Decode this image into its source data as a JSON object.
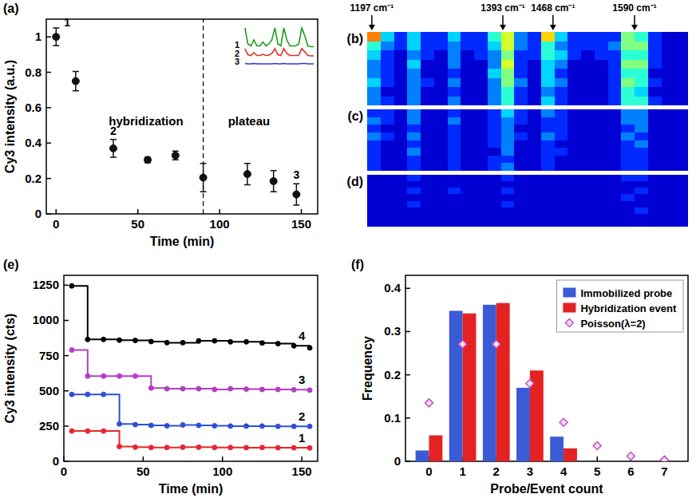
{
  "chart_data": [
    {
      "type": "scatter",
      "panel": "(a)",
      "xlabel": "Time (min)",
      "ylabel": "Cy3 intensity (a.u.)",
      "x": [
        0,
        12,
        35,
        56,
        73,
        90,
        117,
        133,
        147
      ],
      "values": [
        1.0,
        0.75,
        0.37,
        0.305,
        0.33,
        0.205,
        0.225,
        0.185,
        0.11
      ],
      "errors": [
        0.05,
        0.055,
        0.05,
        0.015,
        0.025,
        0.08,
        0.06,
        0.06,
        0.06
      ],
      "point_labels": [
        "1",
        null,
        "2",
        null,
        null,
        null,
        null,
        null,
        "3"
      ],
      "color": "#111111",
      "marker": "circle",
      "xlim": [
        -6,
        160
      ],
      "ylim": [
        0,
        1.1
      ],
      "xticks": [
        0,
        50,
        100,
        150
      ],
      "yticks": [
        0,
        0.2,
        0.4,
        0.6,
        0.8,
        1
      ],
      "annotations": [
        {
          "text": "hybridization",
          "x": 55,
          "y": 0.5
        },
        {
          "text": "plateau",
          "x": 118,
          "y": 0.5
        }
      ],
      "vlines": [
        {
          "x": 90,
          "line_style": "dashed"
        }
      ],
      "inset": {
        "type": "line",
        "x": [
          1200,
          1220,
          1240,
          1260,
          1280,
          1300,
          1320,
          1340,
          1360,
          1380,
          1400,
          1420,
          1440,
          1460,
          1480,
          1500,
          1520,
          1540,
          1560,
          1580,
          1600,
          1620,
          1640,
          1660
        ],
        "xlim": [
          1190,
          1670
        ],
        "ylim": [
          0,
          6
        ],
        "series": [
          {
            "name": "1",
            "color": "#1a9e1a",
            "values": [
              5,
              1,
              0.5,
              2,
              0.5,
              0.5,
              1.5,
              0.5,
              1,
              2,
              5,
              1,
              0.5,
              5,
              2,
              0.5,
              0.5,
              0.5,
              1,
              5,
              3,
              0.5,
              0.3,
              0.3
            ]
          },
          {
            "name": "2",
            "color": "#e0302a",
            "values": [
              2,
              0.5,
              0.3,
              1,
              0.3,
              0.3,
              0.6,
              0.3,
              0.4,
              0.8,
              2,
              0.5,
              0.3,
              2,
              0.8,
              0.3,
              0.3,
              0.3,
              0.4,
              2,
              1.2,
              0.3,
              0.2,
              0.2
            ]
          },
          {
            "name": "3",
            "color": "#2a3adb",
            "values": [
              0.3,
              0.2,
              0.2,
              0.3,
              0.2,
              0.2,
              0.2,
              0.2,
              0.2,
              0.2,
              0.3,
              0.2,
              0.2,
              0.3,
              0.2,
              0.2,
              0.2,
              0.2,
              0.2,
              0.3,
              0.3,
              0.2,
              0.2,
              0.2
            ]
          }
        ]
      }
    },
    {
      "type": "heatmap",
      "color": "jet",
      "x": [
        1200,
        1220,
        1240,
        1260,
        1280,
        1300,
        1320,
        1340,
        1360,
        1380,
        1400,
        1420,
        1440,
        1460,
        1480,
        1500,
        1520,
        1540,
        1560,
        1580,
        1600,
        1620,
        1640,
        1660
      ],
      "xlim": [
        1190,
        1670
      ],
      "zlim": [
        0,
        12
      ],
      "peaks": [
        {
          "value": 1197,
          "label": "1197 cm⁻¹"
        },
        {
          "value": 1393,
          "label": "1393 cm⁻¹"
        },
        {
          "value": 1468,
          "label": "1468 cm⁻¹"
        },
        {
          "value": 1590,
          "label": "1590 cm⁻¹"
        }
      ],
      "panels": [
        {
          "label": "(b)",
          "cells": [
            [
              9,
              4,
              2,
              4,
              2,
              2,
              4,
              2,
              2,
              5,
              7,
              3,
              2,
              8,
              4,
              2,
              2,
              2,
              2,
              6,
              5,
              2,
              1,
              1
            ],
            [
              5,
              3,
              2,
              4,
              2,
              2,
              3,
              2,
              2,
              4,
              7,
              3,
              2,
              5,
              3,
              2,
              2,
              2,
              3,
              6,
              6,
              2,
              1,
              1
            ],
            [
              4,
              2,
              1,
              3,
              2,
              1,
              3,
              1,
              2,
              3,
              6,
              2,
              2,
              5,
              4,
              2,
              1,
              2,
              2,
              5,
              5,
              2,
              1,
              1
            ],
            [
              3,
              2,
              1,
              4,
              1,
              1,
              3,
              1,
              1,
              3,
              7,
              2,
              1,
              4,
              3,
              1,
              1,
              1,
              2,
              6,
              6,
              2,
              1,
              1
            ],
            [
              3,
              2,
              1,
              3,
              1,
              1,
              2,
              1,
              1,
              4,
              6,
              2,
              1,
              4,
              2,
              1,
              1,
              1,
              2,
              5,
              5,
              1,
              1,
              1
            ],
            [
              4,
              2,
              1,
              3,
              2,
              1,
              3,
              1,
              1,
              3,
              6,
              3,
              1,
              4,
              3,
              1,
              1,
              1,
              2,
              6,
              5,
              2,
              1,
              1
            ],
            [
              3,
              1,
              1,
              3,
              1,
              1,
              2,
              1,
              1,
              3,
              5,
              2,
              1,
              3,
              2,
              1,
              1,
              1,
              2,
              5,
              4,
              1,
              1,
              1
            ],
            [
              3,
              2,
              1,
              3,
              1,
              1,
              3,
              1,
              1,
              3,
              5,
              2,
              1,
              4,
              2,
              1,
              1,
              1,
              2,
              5,
              5,
              2,
              1,
              1
            ]
          ]
        },
        {
          "label": "(c)",
          "cells": [
            [
              2,
              2,
              1,
              3,
              1,
              1,
              2,
              1,
              1,
              2,
              4,
              2,
              1,
              3,
              2,
              1,
              1,
              1,
              1,
              3,
              3,
              1,
              1,
              1
            ],
            [
              3,
              2,
              1,
              3,
              1,
              1,
              3,
              1,
              1,
              2,
              3,
              2,
              1,
              2,
              2,
              1,
              1,
              1,
              1,
              3,
              3,
              1,
              1,
              1
            ],
            [
              2,
              1,
              1,
              2,
              1,
              1,
              2,
              1,
              1,
              2,
              3,
              1,
              1,
              2,
              2,
              1,
              1,
              1,
              1,
              2,
              3,
              1,
              1,
              1
            ],
            [
              3,
              2,
              1,
              3,
              1,
              1,
              2,
              1,
              1,
              2,
              3,
              2,
              1,
              3,
              2,
              1,
              1,
              1,
              1,
              3,
              2,
              1,
              1,
              1
            ],
            [
              2,
              1,
              1,
              2,
              1,
              1,
              2,
              1,
              1,
              2,
              3,
              1,
              1,
              2,
              1,
              1,
              1,
              1,
              1,
              2,
              3,
              1,
              1,
              1
            ],
            [
              2,
              1,
              1,
              3,
              1,
              1,
              2,
              1,
              1,
              1,
              3,
              1,
              1,
              2,
              2,
              1,
              1,
              1,
              1,
              2,
              2,
              1,
              1,
              1
            ],
            [
              2,
              1,
              1,
              2,
              1,
              1,
              2,
              1,
              1,
              2,
              2,
              1,
              1,
              2,
              1,
              1,
              1,
              1,
              1,
              2,
              2,
              1,
              1,
              1
            ],
            [
              2,
              1,
              1,
              2,
              1,
              1,
              2,
              1,
              1,
              2,
              3,
              1,
              1,
              2,
              1,
              1,
              1,
              1,
              1,
              2,
              2,
              1,
              1,
              1
            ]
          ]
        },
        {
          "label": "(d)",
          "cells": [
            [
              1,
              1,
              1,
              2,
              1,
              1,
              1,
              1,
              1,
              1,
              2,
              1,
              1,
              1,
              1,
              1,
              1,
              1,
              1,
              2,
              2,
              1,
              1,
              1
            ],
            [
              1,
              1,
              1,
              1,
              1,
              1,
              1,
              1,
              1,
              1,
              1,
              1,
              1,
              1,
              1,
              1,
              1,
              1,
              1,
              1,
              1,
              1,
              1,
              1
            ],
            [
              1,
              1,
              1,
              2,
              1,
              1,
              2,
              1,
              1,
              1,
              2,
              1,
              1,
              1,
              1,
              1,
              1,
              1,
              1,
              1,
              2,
              1,
              1,
              1
            ],
            [
              1,
              1,
              1,
              1,
              1,
              1,
              1,
              1,
              1,
              1,
              1,
              1,
              1,
              1,
              1,
              1,
              1,
              1,
              1,
              2,
              1,
              1,
              1,
              1
            ],
            [
              1,
              1,
              1,
              2,
              1,
              1,
              1,
              1,
              1,
              1,
              2,
              1,
              1,
              1,
              1,
              1,
              1,
              1,
              1,
              1,
              1,
              1,
              1,
              1
            ],
            [
              1,
              1,
              1,
              1,
              1,
              1,
              1,
              1,
              1,
              1,
              1,
              1,
              1,
              1,
              1,
              1,
              1,
              1,
              1,
              1,
              2,
              1,
              1,
              1
            ],
            [
              1,
              1,
              1,
              1,
              1,
              1,
              1,
              1,
              1,
              1,
              1,
              1,
              1,
              1,
              1,
              1,
              1,
              1,
              1,
              1,
              1,
              1,
              1,
              1
            ],
            [
              1,
              1,
              1,
              1,
              1,
              1,
              1,
              1,
              1,
              1,
              1,
              1,
              1,
              1,
              1,
              1,
              1,
              1,
              1,
              1,
              1,
              1,
              1,
              1
            ]
          ]
        }
      ]
    },
    {
      "type": "line",
      "panel": "(e)",
      "xlabel": "Time (min)",
      "ylabel": "Cy3 intensity (cts)",
      "line_style": "step",
      "marker": "circle",
      "x": [
        5,
        15,
        25,
        35,
        45,
        55,
        65,
        75,
        85,
        95,
        105,
        115,
        125,
        135,
        145,
        155
      ],
      "xlim": [
        0,
        160
      ],
      "ylim": [
        0,
        1320
      ],
      "xticks": [
        0,
        50,
        100,
        150
      ],
      "yticks": [
        0,
        250,
        500,
        750,
        1000,
        1250
      ],
      "series": [
        {
          "name": "1",
          "color": "#e8262b",
          "values": [
            215,
            215,
            215,
            105,
            100,
            98,
            98,
            100,
            100,
            98,
            98,
            97,
            98,
            96,
            96,
            95
          ]
        },
        {
          "name": "2",
          "color": "#2f4fd8",
          "values": [
            475,
            475,
            475,
            265,
            260,
            255,
            252,
            258,
            255,
            252,
            250,
            250,
            250,
            248,
            248,
            248
          ]
        },
        {
          "name": "3",
          "color": "#b43cc6",
          "values": [
            790,
            605,
            605,
            605,
            605,
            520,
            515,
            515,
            515,
            510,
            515,
            512,
            510,
            510,
            508,
            505
          ]
        },
        {
          "name": "4",
          "color": "#000000",
          "values": [
            1245,
            865,
            865,
            860,
            858,
            850,
            842,
            842,
            855,
            855,
            848,
            848,
            840,
            835,
            820,
            805
          ]
        }
      ]
    },
    {
      "type": "bar",
      "panel": "(f)",
      "xlabel": "Probe/Event count",
      "ylabel": "Frequency",
      "categories": [
        "0",
        "1",
        "2",
        "3",
        "4",
        "5",
        "6",
        "7"
      ],
      "ylim": [
        0,
        0.43
      ],
      "yticks": [
        0,
        0.1,
        0.2,
        0.3,
        0.4
      ],
      "legend": "upper right",
      "series": [
        {
          "name": "Immobilized probe",
          "color": "#3b5bd6",
          "values": [
            0.025,
            0.348,
            0.362,
            0.17,
            0.057,
            0,
            0,
            0
          ]
        },
        {
          "name": "Hybridization event",
          "color": "#e52222",
          "values": [
            0.06,
            0.342,
            0.366,
            0.21,
            0.03,
            0,
            0,
            0
          ]
        },
        {
          "name": "Poisson(λ=2)",
          "type": "scatter",
          "marker": "diamond",
          "color": "#c050c0",
          "values": [
            0.135,
            0.271,
            0.271,
            0.18,
            0.09,
            0.036,
            0.012,
            0.003
          ]
        }
      ]
    }
  ]
}
